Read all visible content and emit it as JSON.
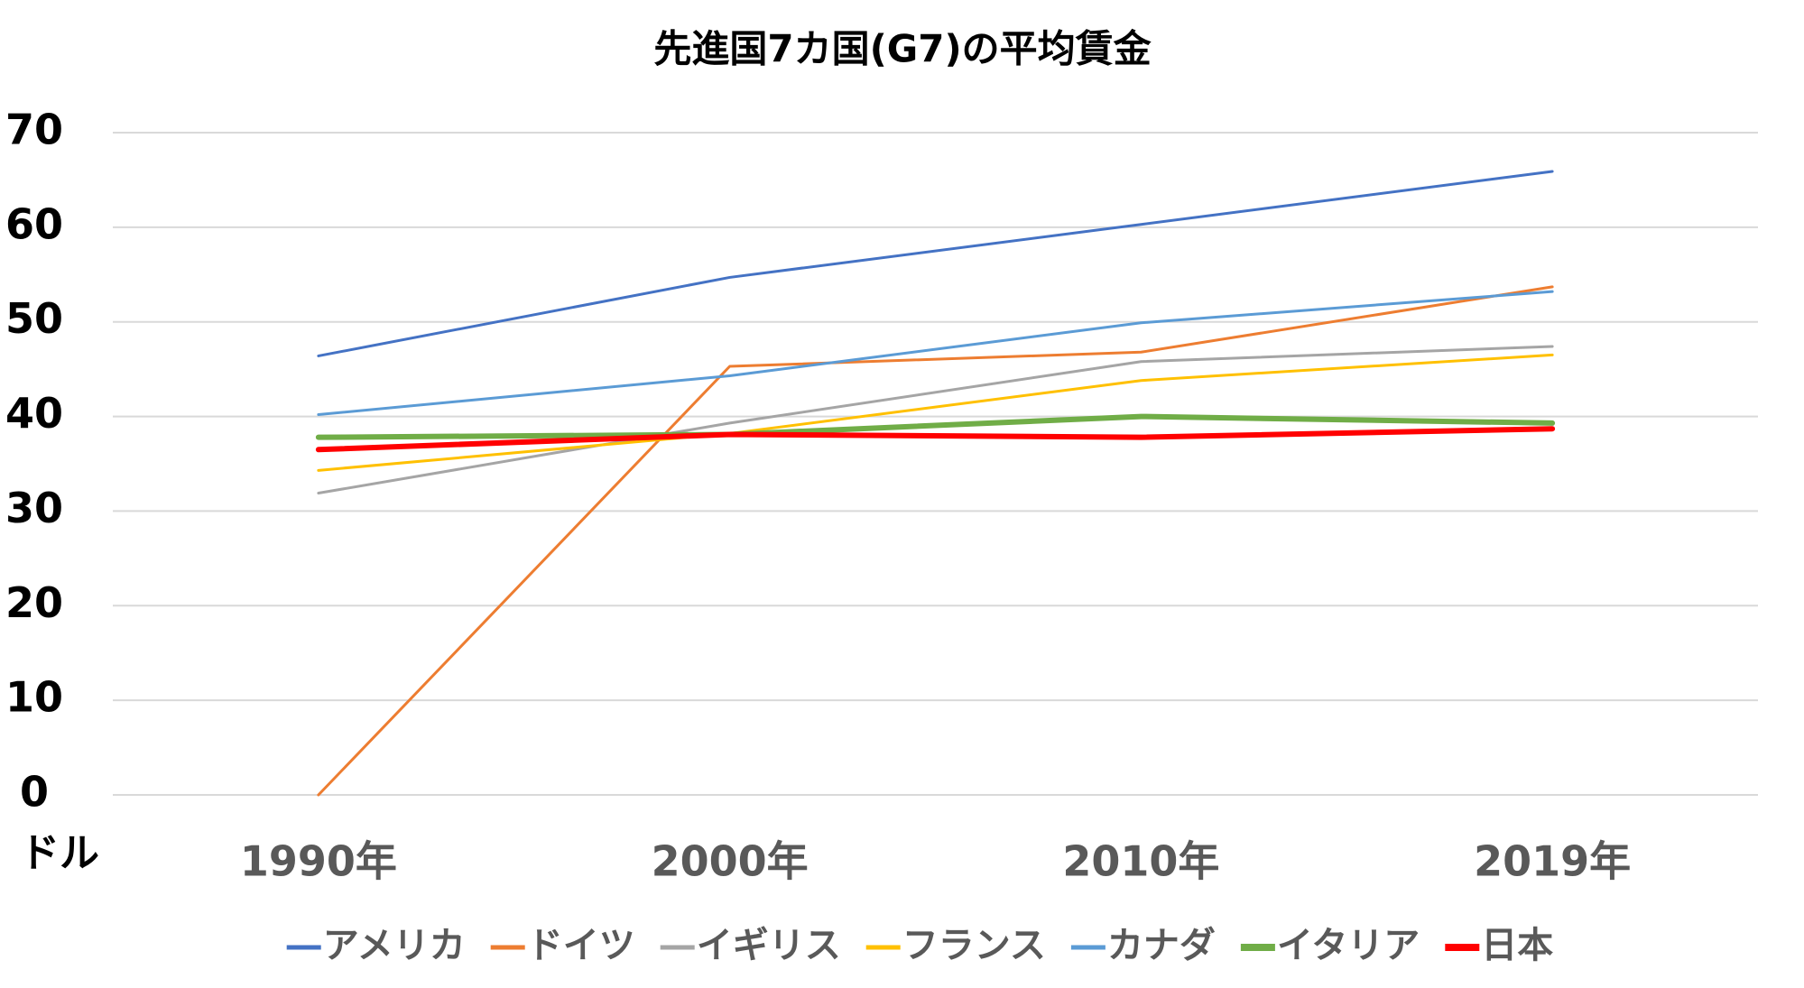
{
  "chart_data": {
    "type": "line",
    "title": "先進国7カ国(G7)の平均賃金",
    "y_label": "ドル",
    "categories": [
      "1990年",
      "2000年",
      "2010年",
      "2019年"
    ],
    "series": [
      {
        "name": "アメリカ",
        "color": "#4472c4",
        "width": 3,
        "values": [
          46.4,
          54.7,
          60.3,
          65.9
        ]
      },
      {
        "name": "ドイツ",
        "color": "#ed7d31",
        "width": 3,
        "values": [
          0,
          45.3,
          46.8,
          53.7
        ]
      },
      {
        "name": "イギリス",
        "color": "#a5a5a5",
        "width": 3,
        "values": [
          31.9,
          39.3,
          45.8,
          47.4
        ]
      },
      {
        "name": "フランス",
        "color": "#ffc000",
        "width": 3,
        "values": [
          34.3,
          38.2,
          43.8,
          46.5
        ]
      },
      {
        "name": "カナダ",
        "color": "#5b9bd5",
        "width": 3,
        "values": [
          40.2,
          44.3,
          49.9,
          53.2
        ]
      },
      {
        "name": "イタリア",
        "color": "#70ad47",
        "width": 6,
        "values": [
          37.8,
          38.1,
          40.0,
          39.3
        ]
      },
      {
        "name": "日本",
        "color": "#ff0000",
        "width": 6,
        "values": [
          36.5,
          38.1,
          37.8,
          38.7
        ]
      }
    ],
    "ylim": [
      0,
      70
    ],
    "yticks": [
      0,
      10,
      20,
      30,
      40,
      50,
      60,
      70
    ],
    "grid": true
  }
}
